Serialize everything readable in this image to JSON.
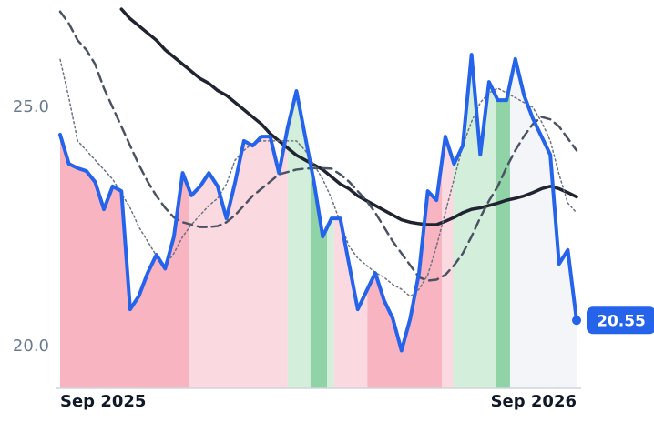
{
  "chart_data": {
    "type": "line",
    "categories": [
      "Sep 2025",
      null,
      null,
      null,
      null,
      null,
      null,
      null,
      null,
      null,
      null,
      null,
      null,
      null,
      null,
      null,
      null,
      null,
      null,
      null,
      null,
      null,
      null,
      null,
      null,
      null,
      null,
      null,
      null,
      null,
      null,
      null,
      null,
      null,
      null,
      null,
      null,
      null,
      null,
      null,
      null,
      null,
      null,
      null,
      null,
      null,
      null,
      null,
      null,
      null,
      null,
      null,
      null,
      null,
      null,
      null,
      null,
      null,
      null,
      "Sep 2026"
    ],
    "series": [
      {
        "color": "#2563eb",
        "style": "solid",
        "width": 4,
        "values": [
          24.43,
          23.82,
          23.73,
          23.67,
          23.44,
          22.87,
          23.35,
          23.25,
          20.78,
          21.06,
          21.54,
          21.92,
          21.63,
          22.3,
          23.63,
          23.16,
          23.35,
          23.63,
          23.35,
          22.68,
          23.44,
          24.3,
          24.2,
          24.39,
          24.39,
          23.63,
          24.58,
          25.34,
          24.39,
          23.44,
          22.3,
          22.68,
          22.68,
          21.73,
          20.78,
          21.16,
          21.54,
          20.97,
          20.59,
          19.92,
          20.59,
          21.54,
          23.25,
          23.06,
          24.39,
          23.82,
          24.2,
          26.1,
          24.01,
          25.53,
          25.15,
          25.15,
          26.01,
          25.25,
          24.77,
          24.39,
          24.01,
          21.73,
          22.02,
          20.55
        ]
      },
      {
        "color": "#1f2430",
        "style": "solid",
        "width": 3.5,
        "values": [
          null,
          null,
          null,
          null,
          null,
          null,
          null,
          27.05,
          26.85,
          26.7,
          26.55,
          26.4,
          26.2,
          26.05,
          25.9,
          25.75,
          25.6,
          25.5,
          25.35,
          25.25,
          25.1,
          24.95,
          24.8,
          24.65,
          24.45,
          24.3,
          24.15,
          24.0,
          23.9,
          23.8,
          23.7,
          23.55,
          23.4,
          23.3,
          23.15,
          23.05,
          22.95,
          22.85,
          22.75,
          22.65,
          22.6,
          22.57,
          22.55,
          22.55,
          22.62,
          22.7,
          22.8,
          22.87,
          22.9,
          22.95,
          23.0,
          23.06,
          23.1,
          23.15,
          23.22,
          23.3,
          23.35,
          23.3,
          23.22,
          23.13
        ]
      },
      {
        "color": "#4a5263",
        "style": "dashed",
        "width": 2.5,
        "values": [
          27.0,
          26.75,
          26.4,
          26.2,
          25.9,
          25.4,
          25.0,
          24.6,
          24.2,
          23.8,
          23.45,
          23.15,
          22.9,
          22.7,
          22.6,
          22.55,
          22.5,
          22.5,
          22.52,
          22.6,
          22.75,
          22.95,
          23.15,
          23.3,
          23.45,
          23.6,
          23.65,
          23.7,
          23.72,
          23.73,
          23.73,
          23.72,
          23.6,
          23.45,
          23.25,
          23.05,
          22.8,
          22.5,
          22.2,
          21.95,
          21.7,
          21.45,
          21.38,
          21.4,
          21.5,
          21.7,
          21.95,
          22.3,
          22.7,
          23.05,
          23.35,
          23.75,
          24.1,
          24.4,
          24.65,
          24.8,
          24.75,
          24.6,
          24.35,
          24.1
        ]
      },
      {
        "color": "#6b7280",
        "style": "dotted",
        "width": 1.5,
        "values": [
          26.0,
          25.2,
          24.3,
          24.1,
          23.9,
          23.7,
          23.5,
          23.2,
          22.9,
          22.5,
          22.2,
          21.9,
          21.7,
          21.95,
          22.3,
          22.55,
          22.75,
          22.95,
          23.1,
          23.4,
          23.9,
          24.1,
          24.25,
          24.3,
          24.3,
          24.3,
          24.3,
          24.3,
          24.1,
          23.8,
          23.5,
          23.1,
          22.6,
          22.1,
          21.85,
          21.7,
          21.55,
          21.45,
          21.3,
          21.2,
          21.05,
          21.2,
          21.5,
          22.1,
          22.8,
          23.5,
          24.2,
          24.7,
          25.1,
          25.3,
          25.4,
          25.3,
          25.2,
          25.1,
          25.0,
          24.7,
          24.3,
          23.6,
          23.0,
          22.8
        ]
      }
    ],
    "bands": [
      {
        "from": 0,
        "to": 14.7,
        "color": "#f8b4c1"
      },
      {
        "from": 14.7,
        "to": 26,
        "color": "#fbd9e0"
      },
      {
        "from": 26,
        "to": 28.6,
        "color": "#d3eedb"
      },
      {
        "from": 28.6,
        "to": 30.5,
        "color": "#8fd3a6"
      },
      {
        "from": 30.5,
        "to": 31.3,
        "color": "#d3eedb"
      },
      {
        "from": 31.3,
        "to": 35.1,
        "color": "#fbd9e0"
      },
      {
        "from": 35.1,
        "to": 43.6,
        "color": "#f8b4c1"
      },
      {
        "from": 43.6,
        "to": 44.9,
        "color": "#fbd9e0"
      },
      {
        "from": 44.9,
        "to": 49.8,
        "color": "#d3eedb"
      },
      {
        "from": 49.8,
        "to": 51.4,
        "color": "#8fd3a6"
      },
      {
        "from": 51.4,
        "to": 59,
        "color": "#f4f5f8"
      }
    ],
    "ylim": [
      19.13,
      27.09
    ],
    "yticks": [
      {
        "value": 20,
        "label": "20.0"
      },
      {
        "value": 25,
        "label": "25.0"
      }
    ]
  }
}
